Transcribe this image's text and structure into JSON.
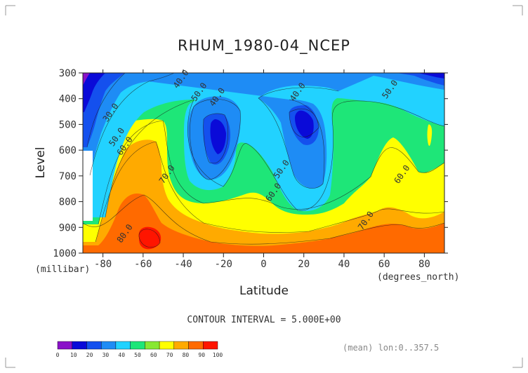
{
  "chart_data": {
    "type": "heatmap",
    "title": "RHUM_1980-04_NCEP",
    "xlabel": "Latitude",
    "ylabel": "Level",
    "x_unit": "(degrees_north)",
    "y_unit": "(millibar)",
    "xlim": [
      -90,
      90
    ],
    "ylim": [
      1000,
      300
    ],
    "x_ticks": [
      "-80",
      "-60",
      "-40",
      "-20",
      "0",
      "20",
      "40",
      "60",
      "80"
    ],
    "x_tick_values": [
      -80,
      -60,
      -40,
      -20,
      0,
      20,
      40,
      60,
      80
    ],
    "y_ticks": [
      "300",
      "400",
      "500",
      "600",
      "700",
      "800",
      "900",
      "1000"
    ],
    "y_tick_values": [
      300,
      400,
      500,
      600,
      700,
      800,
      900,
      1000
    ],
    "contour_interval_text": "CONTOUR INTERVAL = 5.000E+00",
    "footnote": "(mean) lon:0..357.5",
    "colorbar": {
      "labels": [
        "0",
        "10",
        "20",
        "30",
        "40",
        "50",
        "60",
        "70",
        "80",
        "90",
        "100"
      ],
      "bins": [
        0,
        10,
        20,
        30,
        40,
        50,
        60,
        70,
        80,
        90,
        100
      ],
      "colors": [
        "#8a12c8",
        "#0a0ad8",
        "#1450ee",
        "#1e8cf5",
        "#22d2ff",
        "#1ee678",
        "#88e832",
        "#ffff00",
        "#ffaa00",
        "#ff6a00",
        "#ff1500"
      ]
    },
    "contour_labels": [
      {
        "text": "40.0",
        "lat": -40,
        "lev": 330
      },
      {
        "text": "30.0",
        "lat": -75,
        "lev": 460
      },
      {
        "text": "50.0",
        "lat": -31,
        "lev": 380
      },
      {
        "text": "40.0",
        "lat": -22,
        "lev": 400
      },
      {
        "text": "40.0",
        "lat": 18,
        "lev": 380
      },
      {
        "text": "50.0",
        "lat": 64,
        "lev": 370
      },
      {
        "text": "50.0",
        "lat": -72,
        "lev": 555
      },
      {
        "text": "60.0",
        "lat": -68,
        "lev": 590
      },
      {
        "text": "70.0",
        "lat": -47,
        "lev": 700
      },
      {
        "text": "50.0",
        "lat": 10,
        "lev": 680
      },
      {
        "text": "60.0",
        "lat": 6,
        "lev": 770
      },
      {
        "text": "60.0",
        "lat": 70,
        "lev": 700
      },
      {
        "text": "70.0",
        "lat": 52,
        "lev": 880
      },
      {
        "text": "80.0",
        "lat": -68,
        "lev": 930
      }
    ],
    "grid": false
  }
}
